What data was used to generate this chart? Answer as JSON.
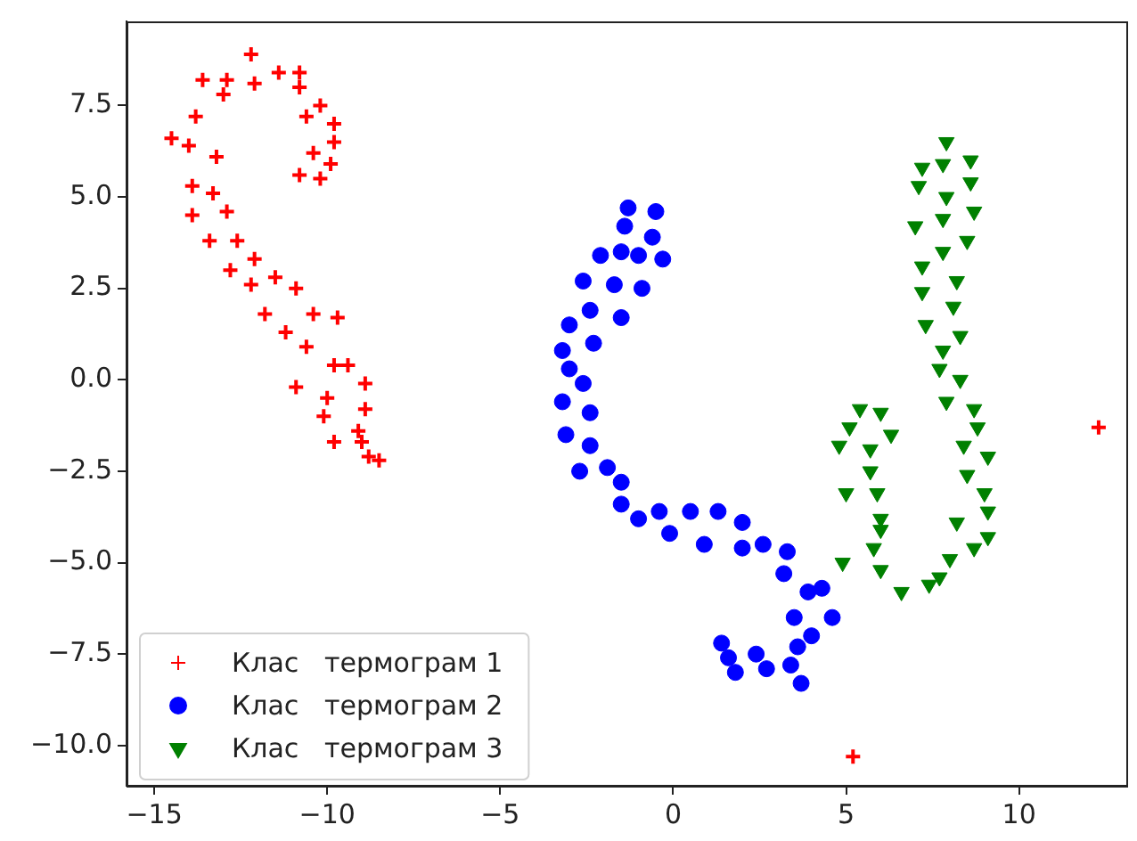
{
  "chart_data": {
    "type": "scatter",
    "xlim": [
      -15.8,
      13.1
    ],
    "ylim": [
      -11.1,
      9.8
    ],
    "xticks": [
      {
        "value": -15,
        "label": "−15"
      },
      {
        "value": -10,
        "label": "−10"
      },
      {
        "value": -5,
        "label": "−5"
      },
      0,
      5,
      10
    ],
    "yticks": [
      {
        "value": -10,
        "label": "−10.0"
      },
      {
        "value": -7.5,
        "label": "−7.5"
      },
      {
        "value": -5,
        "label": "−5.0"
      },
      {
        "value": -2.5,
        "label": "−2.5"
      },
      {
        "value": 0,
        "label": "0.0"
      },
      2.5,
      {
        "value": 5,
        "label": "5.0"
      },
      7.5
    ],
    "legend": "bottom left",
    "series": [
      {
        "name": "Клас   термограм 1",
        "color": "#ff0000",
        "marker": "cross",
        "x": [
          -12.2,
          -13.6,
          -12.9,
          -13.0,
          -12.1,
          -11.4,
          -10.8,
          -10.8,
          -10.2,
          -10.6,
          -9.8,
          -9.8,
          -10.4,
          -9.9,
          -10.8,
          -10.2,
          -13.8,
          -14.5,
          -14.0,
          -13.2,
          -13.9,
          -13.3,
          -13.9,
          -12.9,
          -13.4,
          -12.6,
          -12.8,
          -12.1,
          -12.2,
          -11.5,
          -10.9,
          -11.8,
          -10.4,
          -9.7,
          -11.2,
          -10.6,
          -9.8,
          -9.4,
          -8.9,
          -10.9,
          -10.0,
          -10.1,
          -8.9,
          -9.1,
          -9.0,
          -9.8,
          -8.8,
          -8.5,
          12.3,
          5.2
        ],
        "values": [
          8.9,
          8.2,
          8.2,
          7.8,
          8.1,
          8.4,
          8.4,
          8.0,
          7.5,
          7.2,
          7.0,
          6.5,
          6.2,
          5.9,
          5.6,
          5.5,
          7.2,
          6.6,
          6.4,
          6.1,
          5.3,
          5.1,
          4.5,
          4.6,
          3.8,
          3.8,
          3.0,
          3.3,
          2.6,
          2.8,
          2.5,
          1.8,
          1.8,
          1.7,
          1.3,
          0.9,
          0.4,
          0.4,
          -0.1,
          -0.2,
          -0.5,
          -1.0,
          -0.8,
          -1.4,
          -1.7,
          -1.7,
          -2.1,
          -2.2,
          -1.3,
          -10.3
        ]
      },
      {
        "name": "Клас   термограм 2",
        "color": "#0000ff",
        "marker": "circle",
        "x": [
          -1.3,
          -0.5,
          -1.4,
          -0.6,
          -2.1,
          -1.5,
          -1.0,
          -0.3,
          -2.6,
          -1.7,
          -0.9,
          -2.4,
          -1.5,
          -3.0,
          -2.3,
          -3.2,
          -3.0,
          -2.6,
          -3.2,
          -2.4,
          -3.1,
          -2.4,
          -2.7,
          -1.9,
          -1.5,
          -1.5,
          -1.0,
          -0.4,
          -0.1,
          0.5,
          0.9,
          1.3,
          2.0,
          2.0,
          2.6,
          3.3,
          3.2,
          3.9,
          4.3,
          3.5,
          4.6,
          4.0,
          1.4,
          2.4,
          3.6,
          1.6,
          1.8,
          2.7,
          3.4,
          3.7
        ],
        "values": [
          4.7,
          4.6,
          4.2,
          3.9,
          3.4,
          3.5,
          3.4,
          3.3,
          2.7,
          2.6,
          2.5,
          1.9,
          1.7,
          1.5,
          1.0,
          0.8,
          0.3,
          -0.1,
          -0.6,
          -0.9,
          -1.5,
          -1.8,
          -2.5,
          -2.4,
          -2.8,
          -3.4,
          -3.8,
          -3.6,
          -4.2,
          -3.6,
          -4.5,
          -3.6,
          -3.9,
          -4.6,
          -4.5,
          -4.7,
          -5.3,
          -5.8,
          -5.7,
          -6.5,
          -6.5,
          -7.0,
          -7.2,
          -7.5,
          -7.3,
          -7.6,
          -8.0,
          -7.9,
          -7.8,
          -8.3
        ]
      },
      {
        "name": "Клас   термограм 3",
        "color": "#008000",
        "marker": "triangle",
        "x": [
          7.9,
          8.6,
          7.2,
          7.8,
          8.6,
          7.1,
          7.9,
          7.8,
          8.7,
          7.0,
          8.5,
          7.8,
          7.2,
          8.2,
          7.2,
          8.1,
          7.3,
          8.3,
          7.8,
          7.7,
          8.3,
          7.9,
          8.7,
          8.8,
          8.4,
          9.1,
          8.5,
          9.0,
          9.1,
          8.2,
          9.1,
          8.7,
          8.0,
          7.7,
          7.4,
          6.6,
          5.4,
          6.0,
          5.1,
          6.3,
          4.8,
          5.7,
          5.7,
          5.0,
          5.9,
          6.0,
          6.0,
          5.8,
          4.9,
          6.0
        ],
        "values": [
          6.5,
          6.0,
          5.8,
          5.9,
          5.4,
          5.3,
          5.0,
          4.4,
          4.6,
          4.2,
          3.8,
          3.5,
          3.1,
          2.7,
          2.4,
          2.0,
          1.5,
          1.2,
          0.8,
          0.3,
          0.0,
          -0.6,
          -0.8,
          -1.3,
          -1.8,
          -2.1,
          -2.6,
          -3.1,
          -3.6,
          -3.9,
          -4.3,
          -4.6,
          -4.9,
          -5.4,
          -5.6,
          -5.8,
          -0.8,
          -0.9,
          -1.3,
          -1.5,
          -1.8,
          -1.9,
          -2.5,
          -3.1,
          -3.1,
          -3.8,
          -4.1,
          -4.6,
          -5.0,
          -5.2
        ]
      }
    ]
  }
}
